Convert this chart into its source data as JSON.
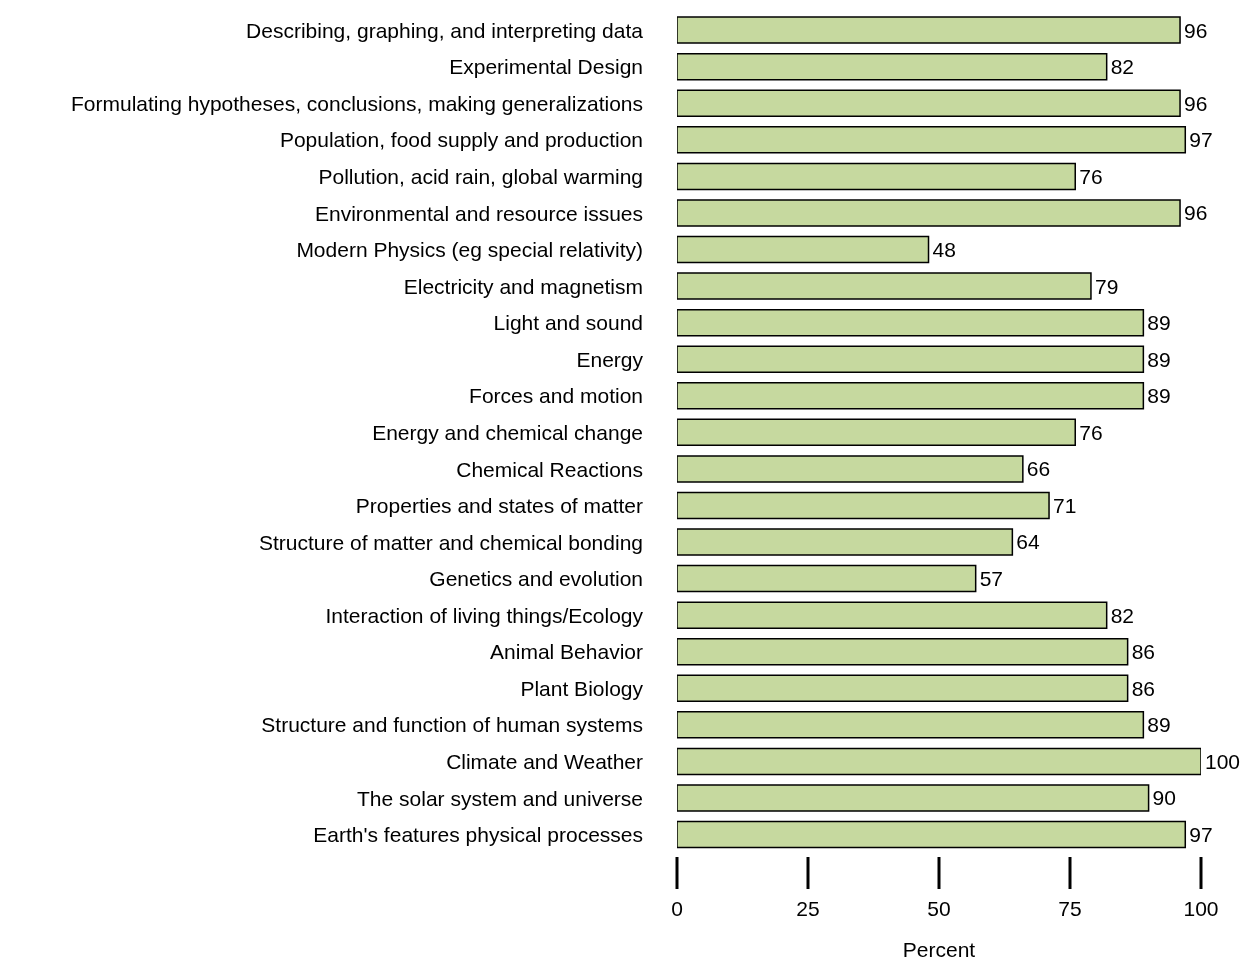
{
  "chart_data": {
    "type": "bar",
    "orientation": "horizontal",
    "xlabel": "Percent",
    "categories": [
      "Describing, graphing, and interpreting data",
      "Experimental Design",
      "Formulating hypotheses, conclusions, making generalizations",
      "Population, food supply and production",
      "Pollution, acid rain, global warming",
      "Environmental and resource issues",
      "Modern Physics (eg special relativity)",
      "Electricity and magnetism",
      "Light and sound",
      "Energy",
      "Forces and motion",
      "Energy and chemical change",
      "Chemical Reactions",
      "Properties and states of matter",
      "Structure of matter and chemical bonding",
      "Genetics and evolution",
      "Interaction of living things/Ecology",
      "Animal Behavior",
      "Plant Biology",
      "Structure and function of human systems",
      "Climate and Weather",
      "The solar system and universe",
      "Earth's features physical processes"
    ],
    "values": [
      96,
      82,
      96,
      97,
      76,
      96,
      48,
      79,
      89,
      89,
      89,
      76,
      66,
      71,
      64,
      57,
      82,
      86,
      86,
      89,
      100,
      90,
      97
    ],
    "color": "#c6d99f",
    "xlim": [
      0,
      100
    ],
    "xticks": [
      0,
      25,
      50,
      75,
      100
    ],
    "data_labels": true,
    "grid": false,
    "legend": false
  }
}
